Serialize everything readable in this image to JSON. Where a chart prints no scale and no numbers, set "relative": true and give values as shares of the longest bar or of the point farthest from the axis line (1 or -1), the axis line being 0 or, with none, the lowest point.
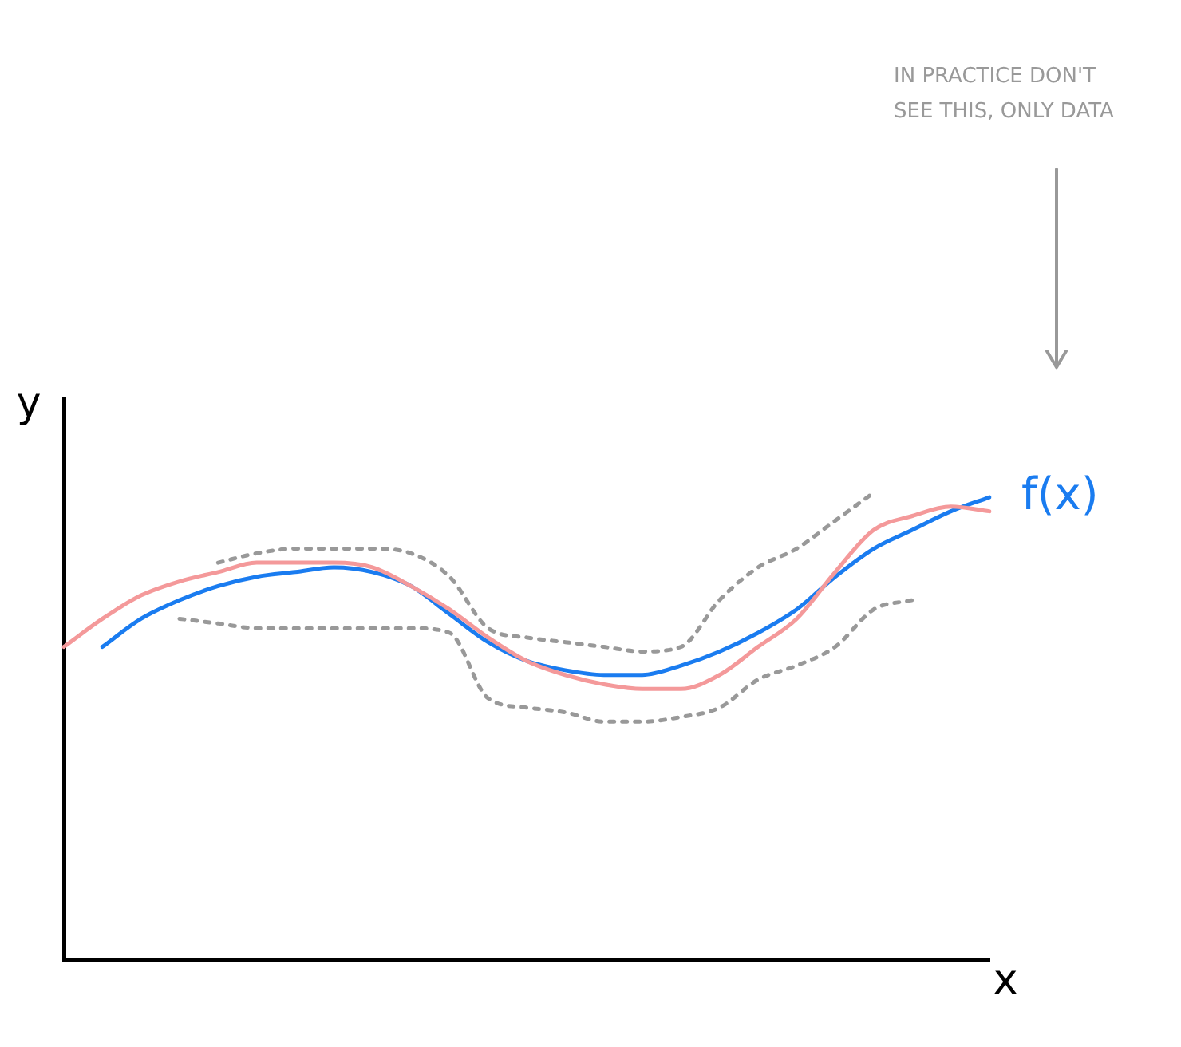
{
  "chart_data": {
    "type": "line",
    "relative": true,
    "xlabel": "x",
    "ylabel": "y",
    "annotations": [
      "IN PRACTICE DON'T SEE THIS, ONLY DATA"
    ],
    "legend": false,
    "grid": false,
    "marker": "none",
    "categories": [
      null,
      null,
      null,
      null,
      null,
      null,
      null,
      null,
      null,
      null,
      null,
      null,
      null,
      null,
      null,
      null,
      null,
      null,
      null,
      null,
      null,
      null,
      null,
      null,
      null
    ],
    "series": [
      {
        "color": "#999999",
        "line_style": "dotted",
        "values": [
          null,
          null,
          null,
          null,
          0.85,
          0.87,
          0.88,
          0.88,
          0.88,
          0.87,
          0.82,
          0.71,
          0.69,
          0.68,
          0.67,
          0.66,
          0.67,
          0.77,
          0.84,
          0.88,
          0.94,
          1.0,
          null,
          null,
          null
        ]
      },
      {
        "color": "#999999",
        "line_style": "dotted",
        "values": [
          null,
          null,
          null,
          0.73,
          0.72,
          0.71,
          0.71,
          0.71,
          0.71,
          0.71,
          0.7,
          0.56,
          0.54,
          0.53,
          0.51,
          0.51,
          0.52,
          0.54,
          0.6,
          0.63,
          0.67,
          0.75,
          0.77,
          null,
          null
        ]
      },
      {
        "color": "#f4999a",
        "line_style": "solid",
        "values": [
          0.67,
          0.73,
          0.78,
          0.81,
          0.83,
          0.85,
          0.85,
          0.85,
          0.84,
          0.8,
          0.75,
          0.69,
          0.64,
          0.61,
          0.59,
          0.58,
          0.58,
          0.61,
          0.67,
          0.73,
          0.83,
          0.92,
          0.95,
          0.97,
          0.96
        ]
      },
      {
        "name": "f(x)",
        "color": "#1a7cf0",
        "line_style": "solid",
        "values": [
          null,
          0.67,
          0.73,
          0.77,
          0.8,
          0.82,
          0.83,
          0.84,
          0.83,
          0.8,
          0.74,
          0.68,
          0.64,
          0.62,
          0.61,
          0.61,
          0.63,
          0.66,
          0.7,
          0.75,
          0.82,
          0.88,
          0.92,
          0.96,
          0.99
        ]
      }
    ]
  }
}
